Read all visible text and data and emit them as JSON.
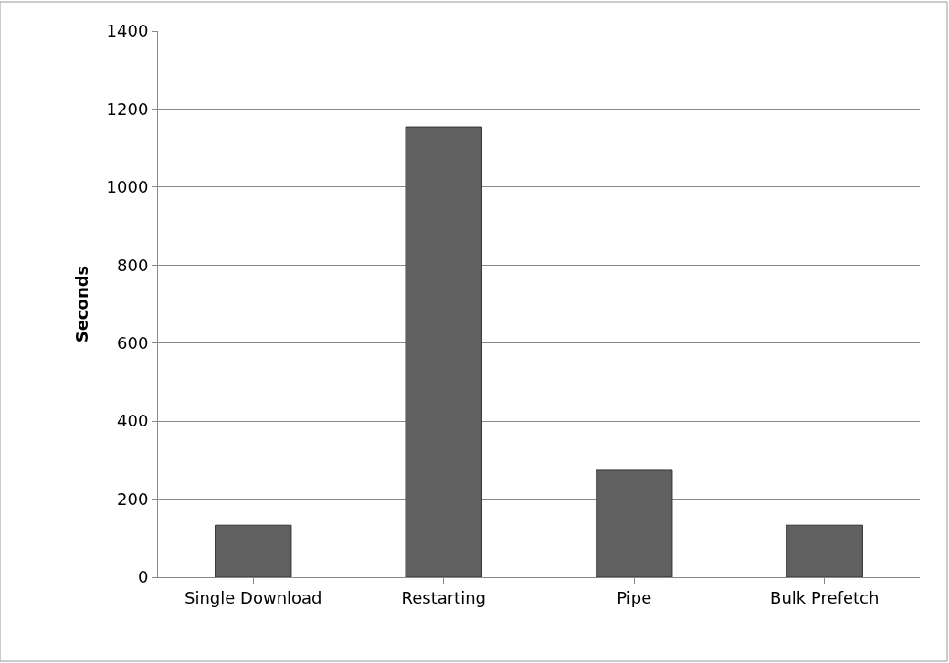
{
  "chart_data": {
    "type": "bar",
    "ylabel": "Seconds",
    "categories": [
      "Single Download",
      "Restarting",
      "Pipe",
      "Bulk Prefetch"
    ],
    "values": [
      133,
      1154,
      274,
      133
    ],
    "color": "#606060",
    "ylim": [
      0,
      1400
    ],
    "yticks": [
      0,
      200,
      400,
      600,
      800,
      1000,
      1200,
      1400
    ],
    "grid": "y",
    "legend": false
  }
}
